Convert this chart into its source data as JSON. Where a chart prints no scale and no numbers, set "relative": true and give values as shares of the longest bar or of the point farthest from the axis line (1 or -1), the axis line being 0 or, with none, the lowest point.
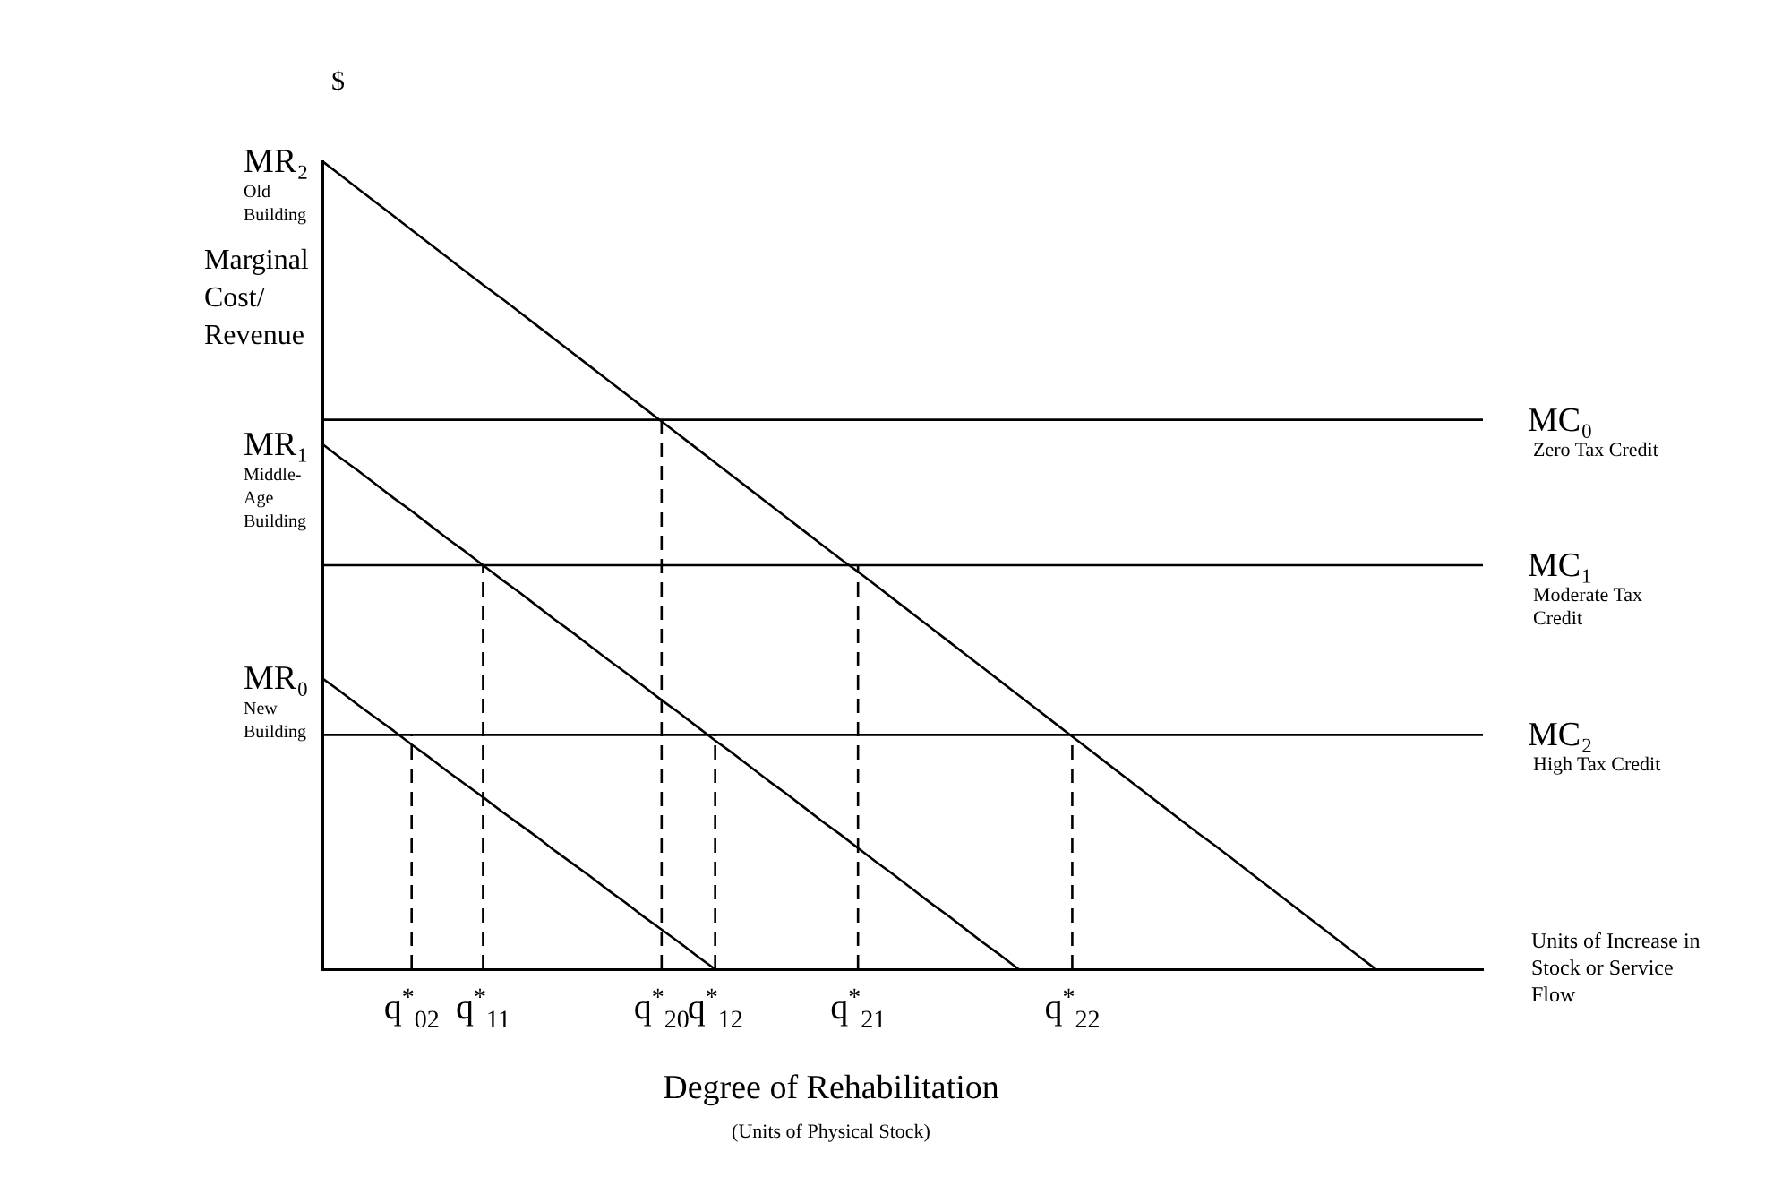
{
  "chart_data": {
    "type": "line",
    "relative": true,
    "ylabel": "Marginal Cost/ Revenue",
    "xlabel": "Degree of Rehabilitation",
    "categories": [
      null,
      null,
      null,
      null,
      null,
      "q$^{*}$$_{02}$",
      null,
      null,
      null,
      "q$^{*}$$_{11}$",
      null,
      null,
      null,
      null,
      null,
      null,
      null,
      null,
      null,
      "q$^{*}$$_{20}$",
      null,
      null,
      "q$^{*}$$_{12}$",
      null,
      null,
      null,
      null,
      null,
      null,
      null,
      "q$^{*}$$_{21}$",
      null,
      null,
      null,
      null,
      null,
      null,
      null,
      null,
      null,
      null,
      null,
      "q$^{*}$$_{22}$",
      null,
      null,
      null,
      null,
      null,
      null,
      null,
      null,
      null,
      null,
      null,
      null,
      null,
      null,
      null,
      null,
      null,
      null,
      null,
      null,
      null,
      null,
      null
    ],
    "series": [
      {
        "name": "MR₂",
        "color": "#000000",
        "values": [
          1,
          0.983,
          0.966,
          0.949,
          0.932,
          0.915,
          0.898,
          0.881,
          0.864,
          0.847,
          0.831,
          0.814,
          0.797,
          0.78,
          0.763,
          0.746,
          0.729,
          0.712,
          0.695,
          0.678,
          0.661,
          0.644,
          0.627,
          0.61,
          0.593,
          0.576,
          0.559,
          0.542,
          0.525,
          0.508,
          0.492,
          0.475,
          0.458,
          0.441,
          0.424,
          0.407,
          0.39,
          0.373,
          0.356,
          0.339,
          0.322,
          0.305,
          0.288,
          0.271,
          0.254,
          0.237,
          0.22,
          0.203,
          0.186,
          0.169,
          0.153,
          0.136,
          0.119,
          0.102,
          0.085,
          0.068,
          0.051,
          0.034,
          0.017,
          0,
          null,
          null,
          null,
          null,
          null,
          null
        ]
      },
      {
        "name": "MR₁",
        "color": "#000000",
        "values": [
          0.65,
          0.633,
          0.617,
          0.6,
          0.583,
          0.567,
          0.55,
          0.533,
          0.517,
          0.5,
          0.483,
          0.467,
          0.45,
          0.433,
          0.417,
          0.4,
          0.383,
          0.367,
          0.35,
          0.333,
          0.317,
          0.3,
          0.283,
          0.267,
          0.25,
          0.233,
          0.217,
          0.2,
          0.183,
          0.167,
          0.15,
          0.133,
          0.117,
          0.1,
          0.083,
          0.067,
          0.05,
          0.033,
          0.017,
          0,
          null,
          null,
          null,
          null,
          null,
          null,
          null,
          null,
          null,
          null,
          null,
          null,
          null,
          null,
          null,
          null,
          null,
          null,
          null,
          null,
          null,
          null,
          null,
          null,
          null,
          null
        ]
      },
      {
        "name": "MR₀",
        "color": "#000000",
        "values": [
          0.36,
          0.344,
          0.327,
          0.311,
          0.295,
          0.278,
          0.262,
          0.245,
          0.229,
          0.213,
          0.196,
          0.18,
          0.164,
          0.147,
          0.131,
          0.115,
          0.098,
          0.082,
          0.065,
          0.049,
          0.033,
          0.016,
          0,
          null,
          null,
          null,
          null,
          null,
          null,
          null,
          null,
          null,
          null,
          null,
          null,
          null,
          null,
          null,
          null,
          null,
          null,
          null,
          null,
          null,
          null,
          null,
          null,
          null,
          null,
          null,
          null,
          null,
          null,
          null,
          null,
          null,
          null,
          null,
          null,
          null,
          null,
          null,
          null,
          null,
          null,
          null
        ]
      },
      {
        "color": "#000000",
        "line_style": "dashed",
        "x": [
          "q$^{*}$$_{02}$",
          "q$^{*}$$_{02}$"
        ],
        "values": [
          0,
          0.29
        ]
      },
      {
        "color": "#000000",
        "line_style": "dashed",
        "x": [
          "q$^{*}$$_{11}$",
          "q$^{*}$$_{11}$"
        ],
        "values": [
          0,
          0.5
        ]
      },
      {
        "color": "#000000",
        "line_style": "dashed",
        "x": [
          "q$^{*}$$_{20}$",
          "q$^{*}$$_{20}$"
        ],
        "values": [
          0,
          0.68
        ]
      },
      {
        "color": "#000000",
        "line_style": "dashed",
        "x": [
          "q$^{*}$$_{12}$",
          "q$^{*}$$_{12}$"
        ],
        "values": [
          0,
          0.29
        ]
      },
      {
        "color": "#000000",
        "line_style": "dashed",
        "x": [
          "q$^{*}$$_{21}$",
          "q$^{*}$$_{21}$"
        ],
        "values": [
          0,
          0.5
        ]
      },
      {
        "color": "#000000",
        "line_style": "dashed",
        "x": [
          "q$^{*}$$_{22}$",
          "q$^{*}$$_{22}$"
        ],
        "values": [
          0,
          0.29
        ]
      }
    ],
    "ref_lines": [
      {
        "axis": "y",
        "value": 0.68,
        "label": "MC₀",
        "color": "#000000"
      },
      {
        "axis": "y",
        "value": 0.5,
        "label": "MC₁",
        "color": "#000000"
      },
      {
        "axis": "y",
        "value": 0.29,
        "label": "MC₂",
        "color": "#000000"
      }
    ],
    "annotations": [
      "$",
      "(Units of Physical Stock)",
      "Units of Increase in Stock or Service Flow",
      "Old Building",
      "Middle-Age Building",
      "New Building",
      "Zero Tax Credit",
      "Moderate Tax Credit",
      "High Tax Credit"
    ]
  }
}
